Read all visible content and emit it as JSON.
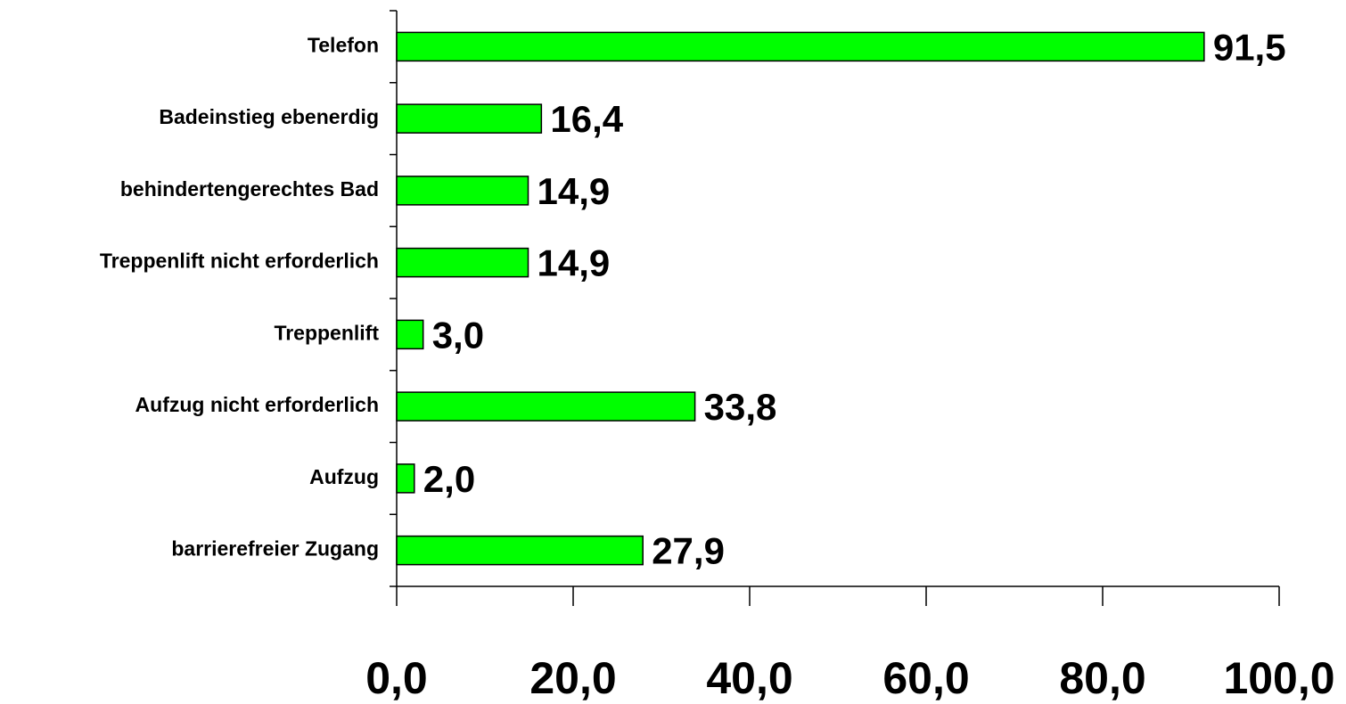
{
  "chart_data": {
    "type": "bar",
    "orientation": "horizontal",
    "categories": [
      "Telefon",
      "Badeinstieg ebenerdig",
      "behindertengerechtes Bad",
      "Treppenlift nicht erforderlich",
      "Treppenlift",
      "Aufzug nicht erforderlich",
      "Aufzug",
      "barrierefreier Zugang"
    ],
    "values": [
      91.5,
      16.4,
      14.9,
      14.9,
      3.0,
      33.8,
      2.0,
      27.9
    ],
    "value_labels": [
      "91,5",
      "16,4",
      "14,9",
      "14,9",
      "3,0",
      "33,8",
      "2,0",
      "27,9"
    ],
    "color": "#00ff00",
    "xlim": [
      0,
      100
    ],
    "xticks": [
      {
        "value": 0,
        "label": "0,0"
      },
      {
        "value": 20,
        "label": "20,0"
      },
      {
        "value": 40,
        "label": "40,0"
      },
      {
        "value": 60,
        "label": "60,0"
      },
      {
        "value": 80,
        "label": "80,0"
      },
      {
        "value": 100,
        "label": "100,0"
      }
    ],
    "grid": false
  }
}
